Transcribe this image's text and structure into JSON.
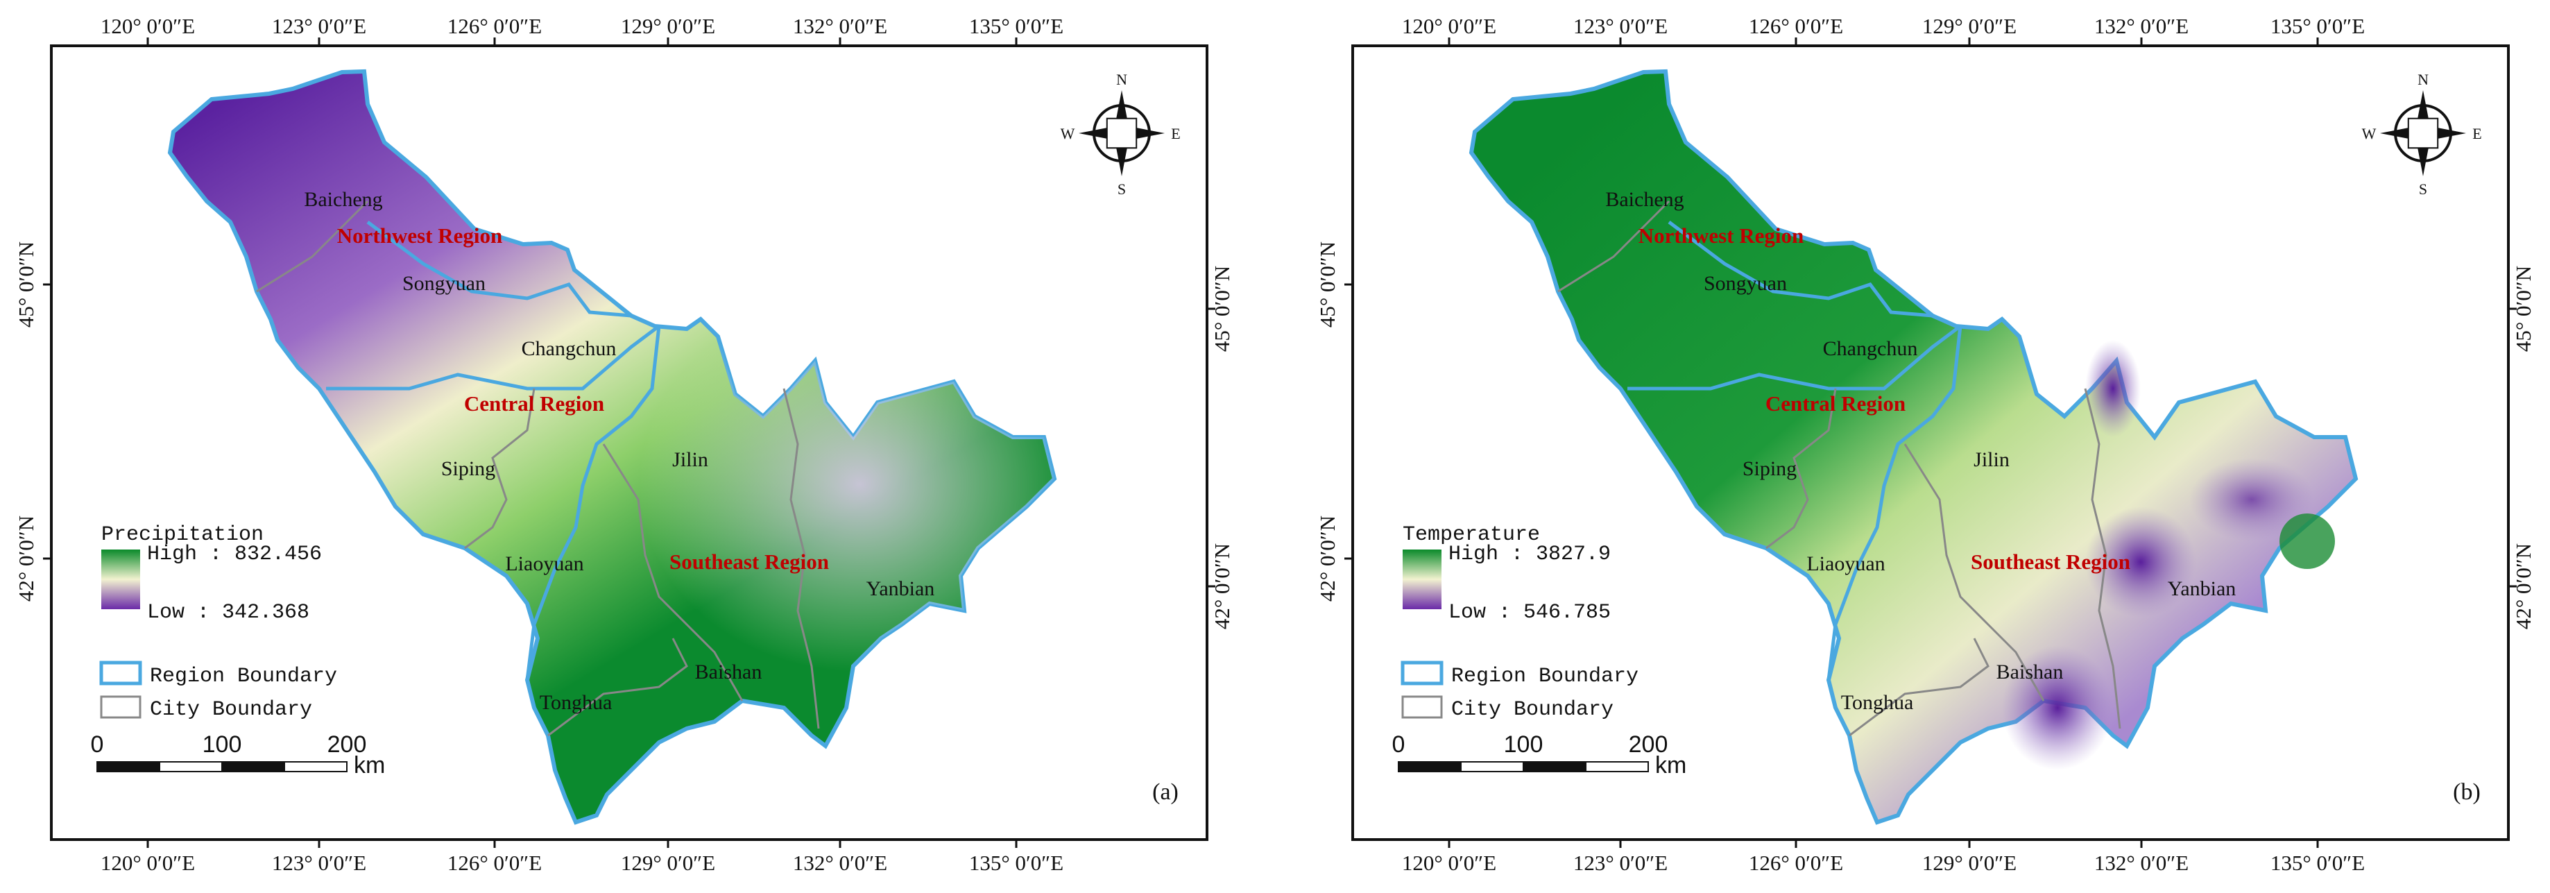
{
  "panels": [
    {
      "id": "a",
      "panel_label": "(a)",
      "legend": {
        "title": "Precipitation",
        "high": "High : 832.456",
        "low": "Low : 342.368",
        "high_color": "#0a8a2a",
        "mid_color": "#f2f2d0",
        "low_color": "#6a2aa8"
      },
      "region_boundary_label": "Region Boundary",
      "city_boundary_label": "City Boundary"
    },
    {
      "id": "b",
      "panel_label": "(b)",
      "legend": {
        "title": "Temperature",
        "high": "High : 3827.9",
        "low": "Low : 546.785",
        "high_color": "#0a8a2a",
        "mid_color": "#f2f2d0",
        "low_color": "#6a2aa8"
      },
      "region_boundary_label": "Region Boundary",
      "city_boundary_label": "City Boundary"
    }
  ],
  "top_ticks": [
    "120° 0′0″E",
    "123° 0′0″E",
    "126° 0′0″E",
    "129° 0′0″E",
    "132° 0′0″E",
    "135° 0′0″E"
  ],
  "bottom_ticks": [
    "120° 0′0″E",
    "123° 0′0″E",
    "126° 0′0″E",
    "129° 0′0″E",
    "132° 0′0″E",
    "135° 0′0″E"
  ],
  "left_ticks": [
    "45° 0′0″N",
    "42° 0′0″N"
  ],
  "right_ticks": [
    "45° 0′0″N",
    "42° 0′0″N"
  ],
  "cities": [
    "Baicheng",
    "Songyuan",
    "Changchun",
    "Siping",
    "Jilin",
    "Liaoyuan",
    "Yanbian",
    "Baishan",
    "Tonghua"
  ],
  "regions": [
    "Northwest Region",
    "Central Region",
    "Southeast Region"
  ],
  "scale": {
    "labels": [
      "0",
      "100",
      "200"
    ],
    "unit": "km"
  },
  "compass": {
    "n": "N",
    "s": "S",
    "e": "E",
    "w": "W"
  },
  "colors": {
    "region_boundary": "#4aa8e0",
    "city_boundary": "#888888",
    "region_label": "#c00000"
  }
}
